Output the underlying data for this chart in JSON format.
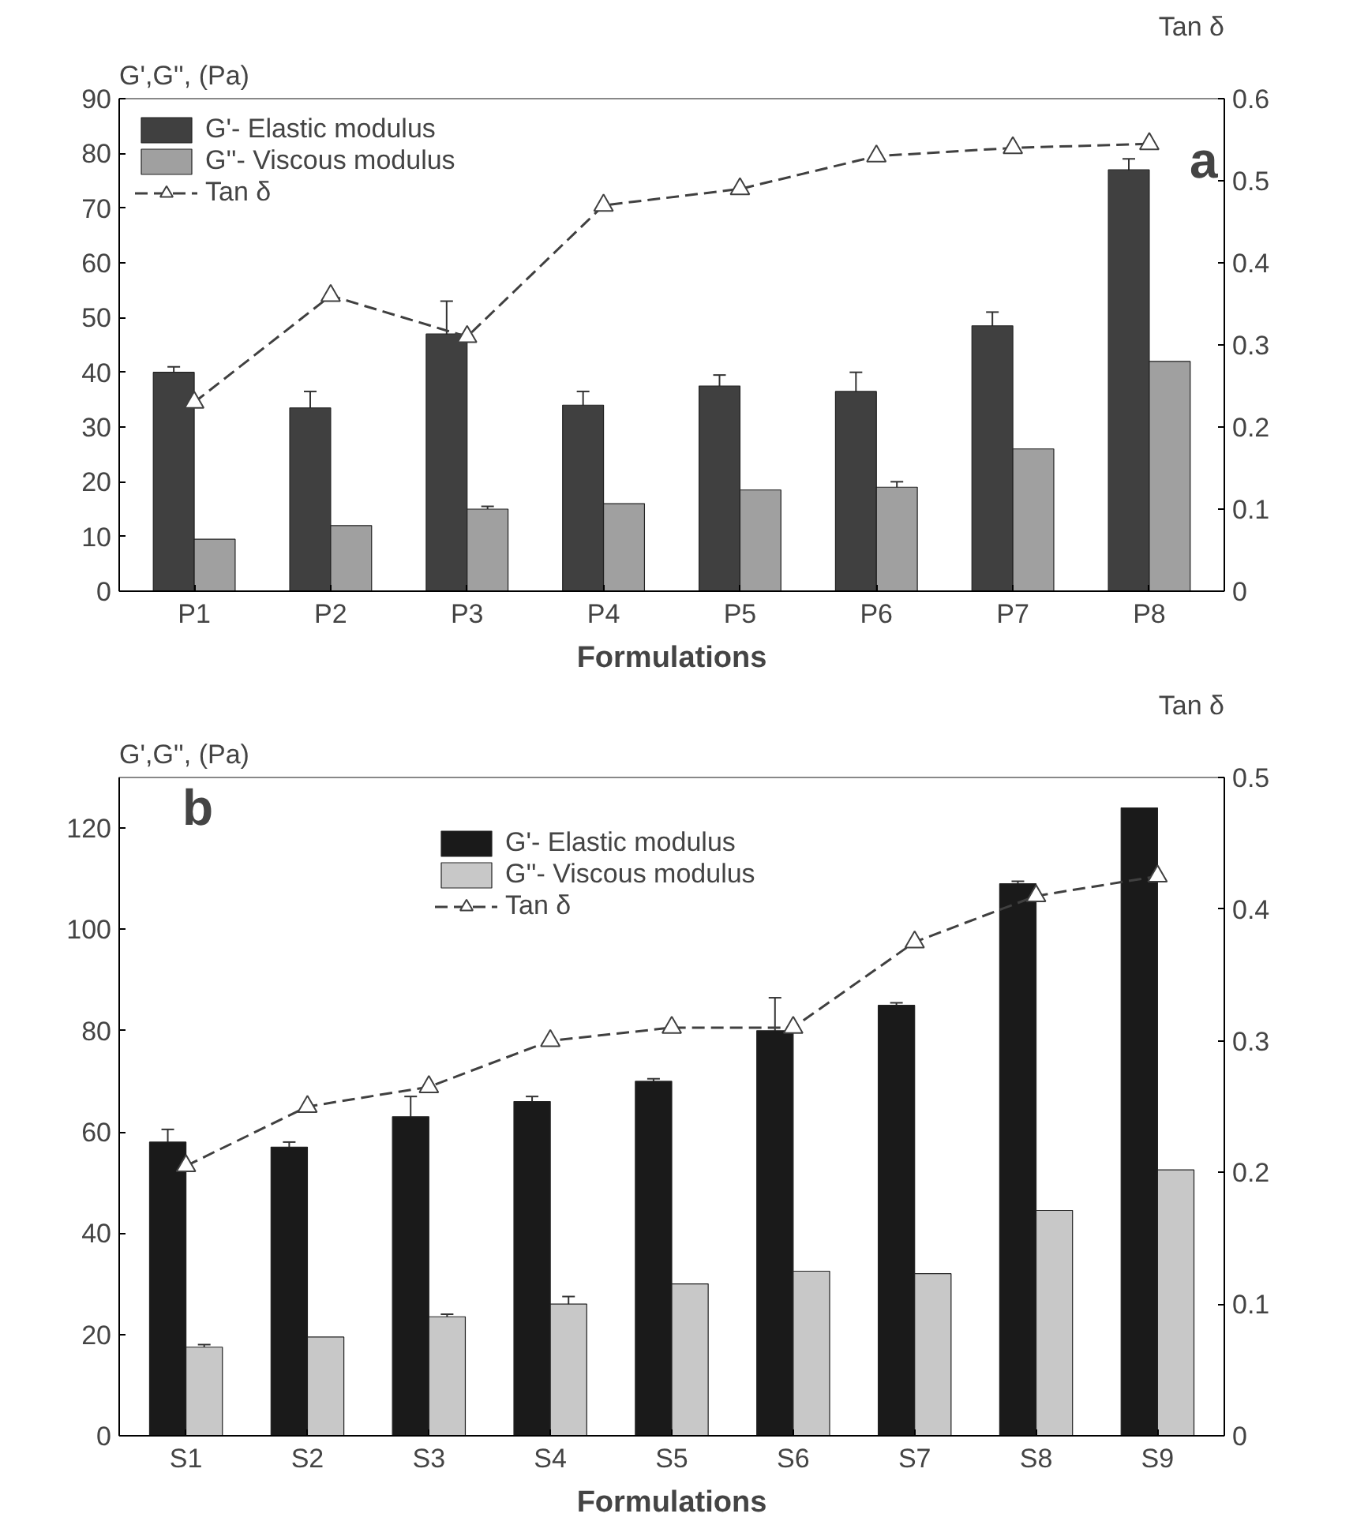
{
  "chart_data": [
    {
      "type": "bar",
      "xlabel": "Formulations",
      "ylabel": "G',G'', (Pa)",
      "y2label": "Tan δ",
      "categories": [
        "P1",
        "P2",
        "P3",
        "P4",
        "P5",
        "P6",
        "P7",
        "P8"
      ],
      "ylim": [
        0,
        90
      ],
      "yticks": [
        0,
        10,
        20,
        30,
        40,
        50,
        60,
        70,
        80,
        90
      ],
      "y2lim": [
        0,
        0.6
      ],
      "y2ticks": [
        0,
        0.1,
        0.2,
        0.3,
        0.4,
        0.5,
        0.6
      ],
      "legend": "top left",
      "grid": false,
      "annotations": [
        "a"
      ],
      "series": [
        {
          "name": "G'- Elastic modulus",
          "color": "#404040",
          "values": [
            40,
            33.5,
            47,
            34,
            37.5,
            36.5,
            48.5,
            77
          ],
          "errors": [
            1,
            3,
            6,
            2.5,
            2,
            3.5,
            2.5,
            2
          ]
        },
        {
          "name": "G''- Viscous modulus",
          "color": "#a0a0a0",
          "values": [
            9.5,
            12,
            15,
            16,
            18.5,
            19,
            26,
            42
          ],
          "errors": [
            null,
            null,
            0.5,
            null,
            null,
            1,
            null,
            null
          ]
        },
        {
          "name": "Tan δ",
          "type": "line",
          "axis": "y2",
          "color": "#404040",
          "marker": "triangle",
          "line_style": "dashed",
          "values": [
            0.23,
            0.36,
            0.31,
            0.47,
            0.49,
            0.53,
            0.54,
            0.545
          ]
        }
      ]
    },
    {
      "type": "bar",
      "xlabel": "Formulations",
      "ylabel": "G',G'', (Pa)",
      "y2label": "Tan δ",
      "categories": [
        "S1",
        "S2",
        "S3",
        "S4",
        "S5",
        "S6",
        "S7",
        "S8",
        "S9"
      ],
      "ylim": [
        0,
        130
      ],
      "yticks": [
        0,
        20,
        40,
        60,
        80,
        100,
        120
      ],
      "y2lim": [
        0,
        0.5
      ],
      "y2ticks": [
        0,
        0.1,
        0.2,
        0.3,
        0.4,
        0.5
      ],
      "legend": "top left",
      "grid": false,
      "annotations": [
        "b"
      ],
      "series": [
        {
          "name": "G'- Elastic modulus",
          "color": "#1a1a1a",
          "values": [
            58,
            57,
            63,
            66,
            70,
            80,
            85,
            109,
            124
          ],
          "errors": [
            2.5,
            1,
            4,
            1,
            0.5,
            6.5,
            0.5,
            0.5,
            null
          ]
        },
        {
          "name": "G''- Viscous modulus",
          "color": "#c8c8c8",
          "values": [
            17.5,
            19.5,
            23.5,
            26,
            30,
            32.5,
            32,
            44.5,
            52.5
          ],
          "errors": [
            0.5,
            null,
            0.5,
            1.5,
            null,
            null,
            null,
            null,
            null
          ]
        },
        {
          "name": "Tan δ",
          "type": "line",
          "axis": "y2",
          "color": "#404040",
          "marker": "triangle",
          "line_style": "dashed",
          "values": [
            0.205,
            0.25,
            0.265,
            0.3,
            0.31,
            0.31,
            0.375,
            0.41,
            0.425
          ]
        }
      ]
    }
  ]
}
